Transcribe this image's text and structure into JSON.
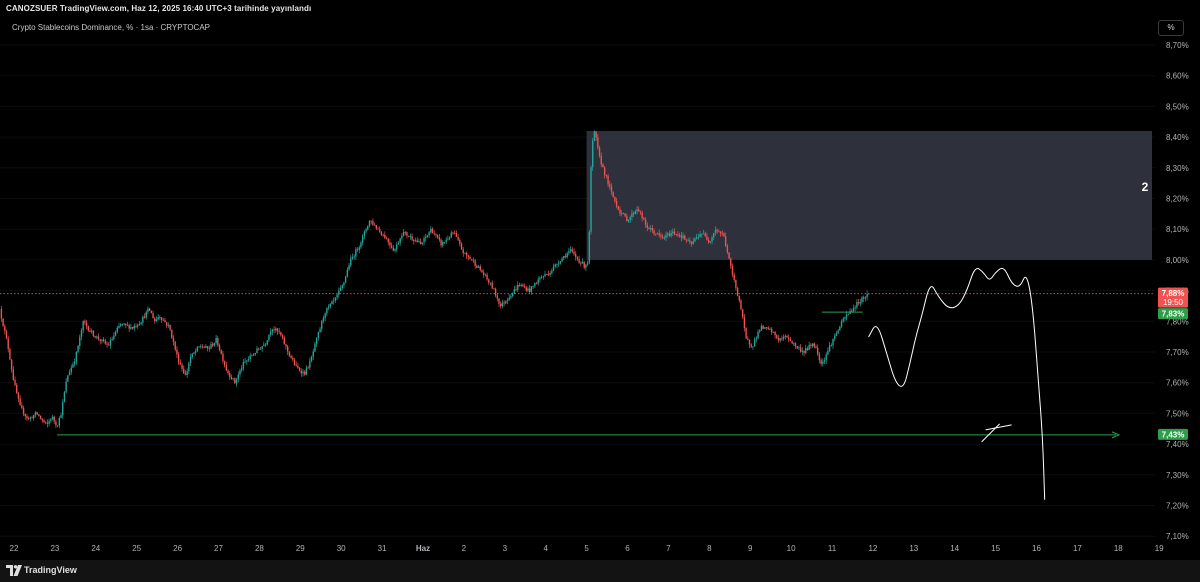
{
  "header": {
    "published_line": "CANOZSUER TradingView.com, Haz 12, 2025 16:40 UTC+3 tarihinde yayınlandı",
    "symbol_line": "Crypto Stablecoins Dominance, % · 1sa · CRYPTOCAP",
    "scale_button": "%"
  },
  "footer": {
    "brand": "TradingView",
    "logo_icon": "tradingview-logo-icon"
  },
  "colors": {
    "up": "#26a69a",
    "down": "#ef5350",
    "zone": "#363a45",
    "support": "#2e9e4a",
    "drawing": "#ffffff",
    "price_line": "#ef5350"
  },
  "chart_data": {
    "type": "candlestick",
    "title": "Crypto Stablecoins Dominance",
    "y_unit": "%",
    "ylim": [
      7.1,
      8.75
    ],
    "y_ticks": [
      "8,70%",
      "8,60%",
      "8,50%",
      "8,40%",
      "8,30%",
      "8,20%",
      "8,10%",
      "8,00%",
      "7,90%",
      "7,80%",
      "7,70%",
      "7,60%",
      "7,50%",
      "7,40%",
      "7,30%",
      "7,20%",
      "7,10%"
    ],
    "y_tick_values": [
      8.7,
      8.6,
      8.5,
      8.4,
      8.3,
      8.2,
      8.1,
      8.0,
      7.9,
      7.8,
      7.7,
      7.6,
      7.5,
      7.4,
      7.3,
      7.2,
      7.1
    ],
    "x_ticks": [
      "22",
      "23",
      "24",
      "25",
      "26",
      "27",
      "28",
      "29",
      "30",
      "31",
      "Haz",
      "2",
      "3",
      "4",
      "5",
      "6",
      "7",
      "8",
      "9",
      "10",
      "11",
      "12",
      "13",
      "14",
      "15",
      "16",
      "17",
      "18",
      "19"
    ],
    "x_tick_days": [
      0,
      1,
      2,
      3,
      4,
      5,
      6,
      7,
      8,
      9,
      10,
      11,
      12,
      13,
      14,
      15,
      16,
      17,
      18,
      19,
      20,
      21,
      22,
      23,
      24,
      25,
      26,
      27,
      28
    ],
    "anchors": [
      [
        -0.35,
        7.84
      ],
      [
        -0.15,
        7.72
      ],
      [
        0.0,
        7.6
      ],
      [
        0.15,
        7.52
      ],
      [
        0.35,
        7.48
      ],
      [
        0.55,
        7.5
      ],
      [
        0.8,
        7.46
      ],
      [
        0.92,
        7.49
      ],
      [
        1.05,
        7.46
      ],
      [
        1.15,
        7.5
      ],
      [
        1.3,
        7.62
      ],
      [
        1.5,
        7.68
      ],
      [
        1.7,
        7.8
      ],
      [
        1.85,
        7.77
      ],
      [
        2.0,
        7.75
      ],
      [
        2.3,
        7.72
      ],
      [
        2.6,
        7.79
      ],
      [
        2.9,
        7.78
      ],
      [
        3.1,
        7.8
      ],
      [
        3.3,
        7.84
      ],
      [
        3.45,
        7.8
      ],
      [
        3.55,
        7.82
      ],
      [
        3.8,
        7.78
      ],
      [
        4.0,
        7.68
      ],
      [
        4.2,
        7.62
      ],
      [
        4.3,
        7.68
      ],
      [
        4.55,
        7.72
      ],
      [
        4.75,
        7.71
      ],
      [
        4.95,
        7.74
      ],
      [
        5.2,
        7.64
      ],
      [
        5.4,
        7.6
      ],
      [
        5.6,
        7.66
      ],
      [
        5.9,
        7.7
      ],
      [
        6.15,
        7.73
      ],
      [
        6.3,
        7.78
      ],
      [
        6.5,
        7.76
      ],
      [
        6.7,
        7.7
      ],
      [
        6.9,
        7.65
      ],
      [
        7.1,
        7.63
      ],
      [
        7.25,
        7.67
      ],
      [
        7.4,
        7.74
      ],
      [
        7.6,
        7.83
      ],
      [
        7.85,
        7.87
      ],
      [
        8.05,
        7.92
      ],
      [
        8.2,
        7.99
      ],
      [
        8.45,
        8.05
      ],
      [
        8.7,
        8.13
      ],
      [
        8.9,
        8.1
      ],
      [
        9.1,
        8.07
      ],
      [
        9.3,
        8.03
      ],
      [
        9.5,
        8.09
      ],
      [
        9.75,
        8.07
      ],
      [
        9.95,
        8.05
      ],
      [
        10.2,
        8.1
      ],
      [
        10.45,
        8.05
      ],
      [
        10.75,
        8.09
      ],
      [
        11.0,
        8.02
      ],
      [
        11.2,
        8.0
      ],
      [
        11.5,
        7.95
      ],
      [
        11.7,
        7.91
      ],
      [
        11.9,
        7.85
      ],
      [
        12.1,
        7.88
      ],
      [
        12.35,
        7.92
      ],
      [
        12.6,
        7.9
      ],
      [
        12.85,
        7.94
      ],
      [
        13.1,
        7.96
      ],
      [
        13.35,
        8.0
      ],
      [
        13.6,
        8.03
      ],
      [
        13.8,
        8.0
      ],
      [
        13.95,
        7.98
      ],
      [
        14.05,
        8.0
      ],
      [
        14.12,
        8.36
      ],
      [
        14.2,
        8.42
      ],
      [
        14.3,
        8.34
      ],
      [
        14.45,
        8.28
      ],
      [
        14.6,
        8.22
      ],
      [
        14.8,
        8.16
      ],
      [
        15.0,
        8.13
      ],
      [
        15.25,
        8.17
      ],
      [
        15.45,
        8.11
      ],
      [
        15.65,
        8.09
      ],
      [
        15.85,
        8.07
      ],
      [
        16.1,
        8.09
      ],
      [
        16.3,
        8.08
      ],
      [
        16.55,
        8.05
      ],
      [
        16.8,
        8.09
      ],
      [
        17.0,
        8.06
      ],
      [
        17.15,
        8.1
      ],
      [
        17.35,
        8.08
      ],
      [
        17.55,
        7.96
      ],
      [
        17.75,
        7.86
      ],
      [
        17.9,
        7.74
      ],
      [
        18.05,
        7.72
      ],
      [
        18.25,
        7.78
      ],
      [
        18.5,
        7.77
      ],
      [
        18.7,
        7.74
      ],
      [
        18.9,
        7.75
      ],
      [
        19.1,
        7.72
      ],
      [
        19.3,
        7.7
      ],
      [
        19.55,
        7.73
      ],
      [
        19.75,
        7.66
      ],
      [
        19.95,
        7.72
      ],
      [
        20.1,
        7.76
      ],
      [
        20.3,
        7.81
      ],
      [
        20.5,
        7.84
      ],
      [
        20.7,
        7.87
      ],
      [
        20.9,
        7.89
      ]
    ],
    "last_price_label": "7,88%",
    "countdown_label": "19:50",
    "second_label": "7,83%",
    "support_level": 7.43,
    "support_label": "7,43%",
    "zone": {
      "y_top": 8.42,
      "y_bottom": 8.0,
      "label": "2"
    },
    "resistance_mini": {
      "y": 7.83
    },
    "projection": [
      [
        20.9,
        7.75
      ],
      [
        21.1,
        7.8
      ],
      [
        21.35,
        7.69
      ],
      [
        21.55,
        7.6
      ],
      [
        21.75,
        7.58
      ],
      [
        21.9,
        7.66
      ],
      [
        22.05,
        7.75
      ],
      [
        22.2,
        7.82
      ],
      [
        22.4,
        7.93
      ],
      [
        22.6,
        7.88
      ],
      [
        22.85,
        7.84
      ],
      [
        23.1,
        7.85
      ],
      [
        23.3,
        7.9
      ],
      [
        23.5,
        7.98
      ],
      [
        23.7,
        7.96
      ],
      [
        23.85,
        7.93
      ],
      [
        24.0,
        7.96
      ],
      [
        24.2,
        7.98
      ],
      [
        24.4,
        7.92
      ],
      [
        24.6,
        7.91
      ],
      [
        24.75,
        7.96
      ],
      [
        24.9,
        7.86
      ],
      [
        25.05,
        7.6
      ],
      [
        25.15,
        7.42
      ],
      [
        25.2,
        7.22
      ]
    ]
  }
}
